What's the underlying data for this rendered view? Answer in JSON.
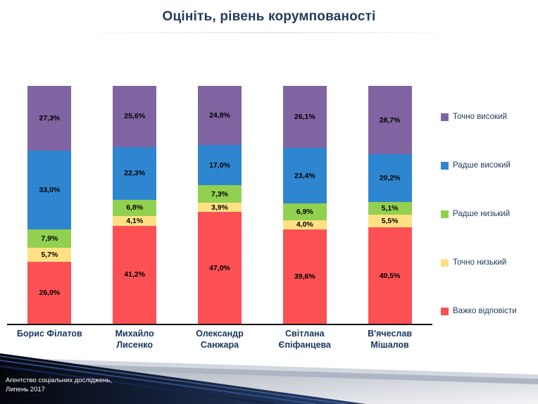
{
  "title": "Оцініть, рівень корумпованості",
  "footer": {
    "line1": "Агентство соціальних досліджень,",
    "line2": "Липень 2017"
  },
  "chart_data": {
    "type": "bar",
    "subtype": "stacked-100-percent-column",
    "title": "Оцініть, рівень корумпованості",
    "categories": [
      "Борис Філатов",
      "Михайло Лисенко",
      "Олександр Санжара",
      "Світлана Єпіфанцева",
      "В'ячеслав Мішалов"
    ],
    "series": [
      {
        "name": "Точно високий",
        "color": "#8064A2",
        "values": [
          27.3,
          25.6,
          24.8,
          26.1,
          28.7
        ]
      },
      {
        "name": "Радше високий",
        "color": "#2E86D0",
        "values": [
          33.0,
          22.3,
          17.0,
          23.4,
          20.2
        ]
      },
      {
        "name": "Радше низький",
        "color": "#92D050",
        "values": [
          7.9,
          6.8,
          7.3,
          6.9,
          5.1
        ]
      },
      {
        "name": "Точно низький",
        "color": "#FFE183",
        "values": [
          5.7,
          4.1,
          3.9,
          4.0,
          5.5
        ]
      },
      {
        "name": "Важко відповісти",
        "color": "#FB5155",
        "values": [
          26.0,
          41.2,
          47.0,
          39.6,
          40.5
        ]
      }
    ],
    "stack_order_bottom_to_top": [
      "Важко відповісти",
      "Точно низький",
      "Радше низький",
      "Радше високий",
      "Точно високий"
    ],
    "value_suffix": "%",
    "decimal_separator": ",",
    "data_labels": true,
    "ylim": [
      0,
      100
    ],
    "grid": false,
    "legend_position": "right"
  }
}
